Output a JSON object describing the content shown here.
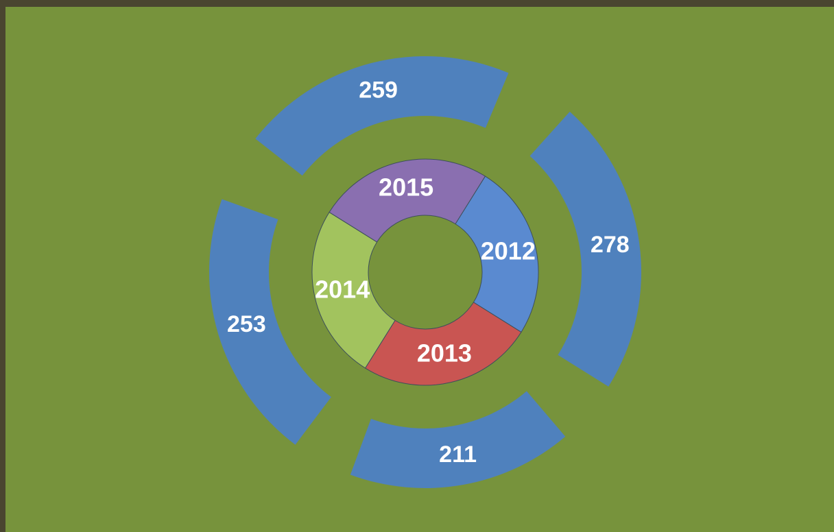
{
  "chart_data": {
    "type": "donut",
    "categories": [
      "2012",
      "2013",
      "2014",
      "2015"
    ],
    "category_colors": [
      "#5a8ad0",
      "#c95552",
      "#a2c35e",
      "#8a6fb0"
    ],
    "values": [
      278,
      211,
      253,
      259
    ],
    "color": "#4f81bd"
  }
}
